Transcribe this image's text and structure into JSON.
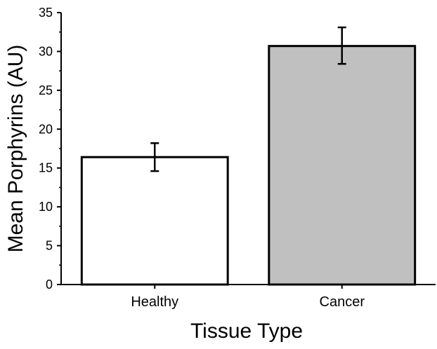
{
  "chart_data": {
    "type": "bar",
    "title": "",
    "xlabel": "Tissue Type",
    "ylabel": "Mean Porphyrins (AU)",
    "categories": [
      "Healthy",
      "Cancer"
    ],
    "values": [
      16.4,
      30.7
    ],
    "error_low": [
      14.6,
      28.4
    ],
    "error_high": [
      18.2,
      33.1
    ],
    "bar_colors": [
      "#ffffff",
      "#c0c0c0"
    ],
    "ylim": [
      0,
      35
    ],
    "yticks": [
      0,
      5,
      10,
      15,
      20,
      25,
      30,
      35
    ],
    "yticks_labels": [
      "0",
      "5",
      "10",
      "15",
      "20",
      "25",
      "30",
      "35"
    ],
    "grid": false,
    "legend": "none"
  }
}
